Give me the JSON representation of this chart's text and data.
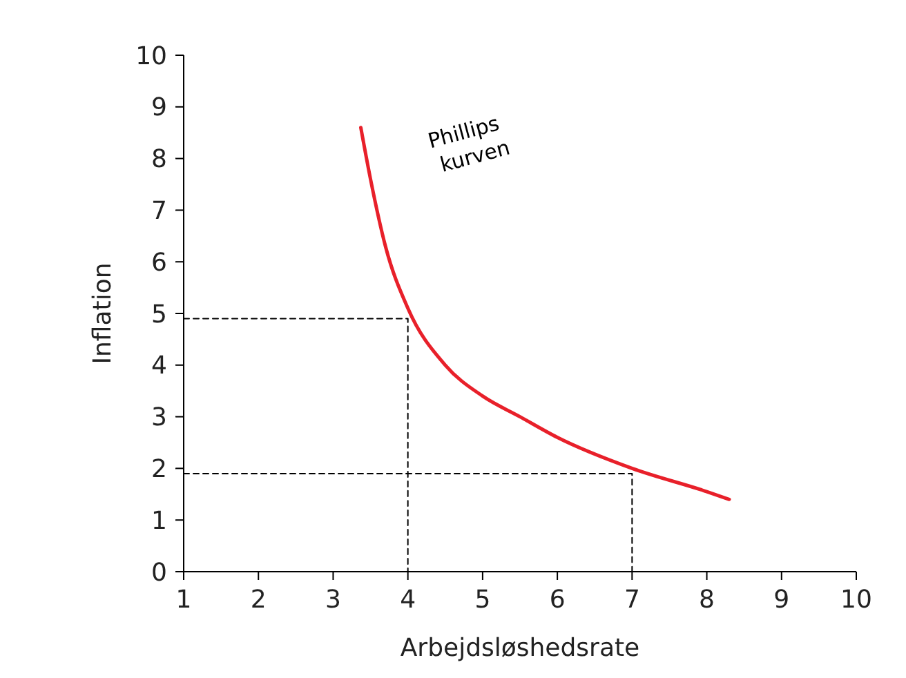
{
  "chart_data": {
    "type": "line",
    "xlabel": "Arbejdsløshedsrate",
    "ylabel": "Inflation",
    "xlim": [
      1,
      10
    ],
    "ylim": [
      0,
      10
    ],
    "xticks": [
      1,
      2,
      3,
      4,
      5,
      6,
      7,
      8,
      9,
      10
    ],
    "yticks": [
      0,
      1,
      2,
      3,
      4,
      5,
      6,
      7,
      8,
      9,
      10
    ],
    "grid": false,
    "marker": "none",
    "series": [
      {
        "color": "#e8202a",
        "line_style": "solid",
        "x": [
          3.37,
          3.5,
          3.7,
          4,
          4.5,
          5,
          5.5,
          6,
          7,
          8,
          8.3
        ],
        "values": [
          8.6,
          7.6,
          6.3,
          5.1,
          4.0,
          3.4,
          3.0,
          2.6,
          2.0,
          1.55,
          1.4
        ]
      },
      {
        "color": "#000000",
        "line_style": "dashed",
        "x": [
          1,
          4,
          4
        ],
        "values": [
          4.9,
          4.9,
          0
        ]
      },
      {
        "color": "#000000",
        "line_style": "dashed",
        "x": [
          1,
          7,
          7
        ],
        "values": [
          1.9,
          1.9,
          0
        ]
      }
    ],
    "annotations": [
      "Phillips kurven"
    ]
  }
}
